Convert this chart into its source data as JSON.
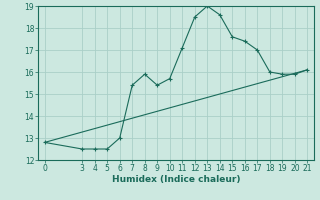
{
  "xlabel": "Humidex (Indice chaleur)",
  "bg_color": "#cce8e0",
  "grid_color": "#aacfc8",
  "line_color": "#1a6b5a",
  "spine_color": "#1a6b5a",
  "xlim": [
    -0.5,
    21.5
  ],
  "ylim": [
    12,
    19
  ],
  "xticks": [
    0,
    3,
    4,
    5,
    6,
    7,
    8,
    9,
    10,
    11,
    12,
    13,
    14,
    15,
    16,
    17,
    18,
    19,
    20,
    21
  ],
  "yticks": [
    12,
    13,
    14,
    15,
    16,
    17,
    18,
    19
  ],
  "curve1_x": [
    0,
    3,
    4,
    5,
    6,
    7,
    8,
    9,
    10,
    11,
    12,
    13,
    14,
    15,
    16,
    17,
    18,
    19,
    20,
    21
  ],
  "curve1_y": [
    12.8,
    12.5,
    12.5,
    12.5,
    13.0,
    15.4,
    15.9,
    15.4,
    15.7,
    17.1,
    18.5,
    19.0,
    18.6,
    17.6,
    17.4,
    17.0,
    16.0,
    15.9,
    15.9,
    16.1
  ],
  "curve2_x": [
    0,
    21
  ],
  "curve2_y": [
    12.8,
    16.1
  ],
  "tick_fontsize": 5.5,
  "xlabel_fontsize": 6.5
}
